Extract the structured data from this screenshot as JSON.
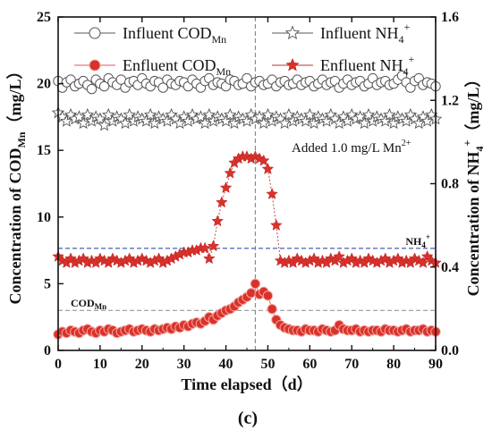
{
  "panel_label": "(c)",
  "chart_data": {
    "type": "scatter",
    "xlabel": "Time elapsed（d）",
    "ylabel_left": "Concentration of COD",
    "ylabel_left_sub": "Mn",
    "ylabel_left_unit": "（mg/L）",
    "ylabel_right": "Concentration of NH",
    "ylabel_right_sub": "4",
    "ylabel_right_sup": "+",
    "ylabel_right_unit": "（mg/L）",
    "xlim": [
      0,
      90
    ],
    "ylim_left": [
      0,
      25
    ],
    "ylim_right": [
      0,
      1.6
    ],
    "x_ticks": [
      "0",
      "10",
      "20",
      "30",
      "40",
      "50",
      "60",
      "70",
      "80",
      "90"
    ],
    "y_left_ticks": [
      "0",
      "5",
      "10",
      "15",
      "20",
      "25"
    ],
    "y_right_ticks": [
      "0.0",
      "0.4",
      "0.8",
      "1.2",
      "1.6"
    ],
    "legend": {
      "placement": "top",
      "items": [
        {
          "main": "Influent COD",
          "sub": "Mn",
          "sup": ""
        },
        {
          "main": "Influent NH",
          "sub": "4",
          "sup": "+"
        },
        {
          "main": "Enfluent COD",
          "sub": "Mn",
          "sup": ""
        },
        {
          "main": "Enfluent NH",
          "sub": "4",
          "sup": "+"
        }
      ]
    },
    "annotation": {
      "text": "Added 1.0 mg/L Mn",
      "sup": "2+",
      "x": 47
    },
    "ref_lines": [
      {
        "label": "NH",
        "sub": "4",
        "sup": "+",
        "axis": "right",
        "y": 0.49,
        "color": "#3a4fa8"
      },
      {
        "label": "COD",
        "sub": "Mn",
        "sup": "",
        "axis": "left",
        "y": 3.0,
        "color": "#8a8a8a"
      }
    ],
    "series": [
      {
        "name": "Influent COD",
        "axis": "left",
        "marker": "open-circle",
        "color": "#555555",
        "x": [
          0,
          1,
          2,
          3,
          4,
          5,
          6,
          7,
          8,
          9,
          10,
          11,
          12,
          13,
          14,
          15,
          16,
          17,
          18,
          19,
          20,
          21,
          22,
          23,
          24,
          25,
          26,
          27,
          28,
          29,
          30,
          31,
          32,
          33,
          34,
          35,
          36,
          37,
          38,
          39,
          40,
          41,
          42,
          43,
          44,
          45,
          46,
          47,
          48,
          49,
          50,
          51,
          52,
          53,
          54,
          55,
          56,
          57,
          58,
          59,
          60,
          61,
          62,
          63,
          64,
          65,
          66,
          67,
          68,
          69,
          70,
          71,
          72,
          73,
          74,
          75,
          76,
          77,
          78,
          79,
          80,
          81,
          82,
          83,
          84,
          85,
          86,
          87,
          88,
          89,
          90
        ],
        "y": [
          20.2,
          19.7,
          20.1,
          20.3,
          19.8,
          20.0,
          20.2,
          19.9,
          19.6,
          20.3,
          20.0,
          19.8,
          20.4,
          20.1,
          19.9,
          20.3,
          19.7,
          20.1,
          20.2,
          19.9,
          20.4,
          20.0,
          19.8,
          20.2,
          20.1,
          19.7,
          20.3,
          20.0,
          19.9,
          20.2,
          20.1,
          19.8,
          20.3,
          20.0,
          19.7,
          20.2,
          20.4,
          19.9,
          20.1,
          20.0,
          19.8,
          20.3,
          20.2,
          19.9,
          20.0,
          20.4,
          19.8,
          20.1,
          20.2,
          19.9,
          20.0,
          20.3,
          19.8,
          20.1,
          20.2,
          19.9,
          20.0,
          20.3,
          19.9,
          20.1,
          20.2,
          19.8,
          20.0,
          20.3,
          19.9,
          20.1,
          20.2,
          19.7,
          20.0,
          20.3,
          19.9,
          20.1,
          20.2,
          19.8,
          20.0,
          20.4,
          19.9,
          20.1,
          20.2,
          19.9,
          20.0,
          20.3,
          20.6,
          20.1,
          19.7,
          20.2,
          20.4,
          19.9,
          20.1,
          20.0,
          19.8
        ]
      },
      {
        "name": "Influent NH",
        "axis": "right",
        "marker": "open-star",
        "color": "#555555",
        "x": [
          0,
          1,
          2,
          3,
          4,
          5,
          6,
          7,
          8,
          9,
          10,
          11,
          12,
          13,
          14,
          15,
          16,
          17,
          18,
          19,
          20,
          21,
          22,
          23,
          24,
          25,
          26,
          27,
          28,
          29,
          30,
          31,
          32,
          33,
          34,
          35,
          36,
          37,
          38,
          39,
          40,
          41,
          42,
          43,
          44,
          45,
          46,
          47,
          48,
          49,
          50,
          51,
          52,
          53,
          54,
          55,
          56,
          57,
          58,
          59,
          60,
          61,
          62,
          63,
          64,
          65,
          66,
          67,
          68,
          69,
          70,
          71,
          72,
          73,
          74,
          75,
          76,
          77,
          78,
          79,
          80,
          81,
          82,
          83,
          84,
          85,
          86,
          87,
          88,
          89,
          90
        ],
        "y": [
          1.14,
          1.12,
          1.1,
          1.13,
          1.11,
          1.12,
          1.09,
          1.13,
          1.1,
          1.12,
          1.11,
          1.08,
          1.13,
          1.1,
          1.12,
          1.11,
          1.09,
          1.13,
          1.1,
          1.12,
          1.11,
          1.1,
          1.13,
          1.09,
          1.12,
          1.11,
          1.1,
          1.13,
          1.11,
          1.09,
          1.12,
          1.1,
          1.13,
          1.11,
          1.12,
          1.09,
          1.13,
          1.1,
          1.12,
          1.11,
          1.1,
          1.13,
          1.09,
          1.12,
          1.11,
          1.1,
          1.13,
          1.11,
          1.12,
          1.09,
          1.13,
          1.1,
          1.12,
          1.11,
          1.09,
          1.13,
          1.1,
          1.12,
          1.11,
          1.1,
          1.13,
          1.09,
          1.12,
          1.11,
          1.1,
          1.13,
          1.11,
          1.09,
          1.12,
          1.1,
          1.13,
          1.11,
          1.12,
          1.09,
          1.13,
          1.1,
          1.12,
          1.11,
          1.1,
          1.13,
          1.09,
          1.12,
          1.11,
          1.1,
          1.13,
          1.11,
          1.09,
          1.12,
          1.1,
          1.13,
          1.11
        ]
      },
      {
        "name": "Enfluent COD",
        "axis": "left",
        "marker": "filled-circle",
        "color": "#d9322b",
        "x": [
          0,
          1,
          2,
          3,
          4,
          5,
          6,
          7,
          8,
          9,
          10,
          11,
          12,
          13,
          14,
          15,
          16,
          17,
          18,
          19,
          20,
          21,
          22,
          23,
          24,
          25,
          26,
          27,
          28,
          29,
          30,
          31,
          32,
          33,
          34,
          35,
          36,
          37,
          38,
          39,
          40,
          41,
          42,
          43,
          44,
          45,
          46,
          47,
          48,
          49,
          50,
          51,
          52,
          53,
          54,
          55,
          56,
          57,
          58,
          59,
          60,
          61,
          62,
          63,
          64,
          65,
          66,
          67,
          68,
          69,
          70,
          71,
          72,
          73,
          74,
          75,
          76,
          77,
          78,
          79,
          80,
          81,
          82,
          83,
          84,
          85,
          86,
          87,
          88,
          89,
          90
        ],
        "y": [
          1.2,
          1.4,
          1.3,
          1.5,
          1.4,
          1.3,
          1.5,
          1.6,
          1.4,
          1.3,
          1.5,
          1.4,
          1.6,
          1.5,
          1.3,
          1.4,
          1.5,
          1.6,
          1.4,
          1.5,
          1.6,
          1.5,
          1.4,
          1.6,
          1.5,
          1.6,
          1.7,
          1.6,
          1.8,
          1.7,
          1.9,
          1.8,
          2.0,
          2.1,
          2.0,
          2.2,
          2.5,
          2.3,
          2.6,
          2.8,
          3.0,
          3.1,
          3.3,
          3.6,
          3.8,
          4.0,
          4.3,
          5.0,
          4.2,
          4.4,
          4.1,
          3.1,
          2.3,
          1.9,
          1.7,
          1.6,
          1.5,
          1.5,
          1.4,
          1.6,
          1.5,
          1.5,
          1.4,
          1.6,
          1.5,
          1.4,
          1.5,
          1.9,
          1.6,
          1.5,
          1.5,
          1.6,
          1.4,
          1.5,
          1.4,
          1.5,
          1.5,
          1.4,
          1.6,
          1.5,
          1.5,
          1.4,
          1.5,
          1.6,
          1.4,
          1.5,
          1.5,
          1.6,
          1.4,
          1.5,
          1.4
        ]
      },
      {
        "name": "Enfluent NH",
        "axis": "right",
        "marker": "filled-star",
        "color": "#d9322b",
        "x": [
          0,
          1,
          2,
          3,
          4,
          5,
          6,
          7,
          8,
          9,
          10,
          11,
          12,
          13,
          14,
          15,
          16,
          17,
          18,
          19,
          20,
          21,
          22,
          23,
          24,
          25,
          26,
          27,
          28,
          29,
          30,
          31,
          32,
          33,
          34,
          35,
          36,
          37,
          38,
          39,
          40,
          41,
          42,
          43,
          44,
          45,
          46,
          47,
          48,
          49,
          50,
          51,
          52,
          53,
          54,
          55,
          56,
          57,
          58,
          59,
          60,
          61,
          62,
          63,
          64,
          65,
          66,
          67,
          68,
          69,
          70,
          71,
          72,
          73,
          74,
          75,
          76,
          77,
          78,
          79,
          80,
          81,
          82,
          83,
          84,
          85,
          86,
          87,
          88,
          89,
          90
        ],
        "y": [
          0.45,
          0.43,
          0.42,
          0.44,
          0.42,
          0.43,
          0.44,
          0.42,
          0.43,
          0.42,
          0.44,
          0.43,
          0.42,
          0.44,
          0.43,
          0.42,
          0.43,
          0.44,
          0.42,
          0.43,
          0.44,
          0.43,
          0.42,
          0.43,
          0.44,
          0.42,
          0.43,
          0.44,
          0.45,
          0.46,
          0.47,
          0.47,
          0.48,
          0.48,
          0.49,
          0.49,
          0.44,
          0.5,
          0.62,
          0.71,
          0.78,
          0.85,
          0.9,
          0.92,
          0.93,
          0.93,
          0.92,
          0.93,
          0.92,
          0.91,
          0.87,
          0.75,
          0.6,
          0.43,
          0.42,
          0.43,
          0.42,
          0.44,
          0.43,
          0.42,
          0.43,
          0.44,
          0.42,
          0.43,
          0.42,
          0.44,
          0.43,
          0.45,
          0.42,
          0.43,
          0.44,
          0.42,
          0.43,
          0.42,
          0.44,
          0.43,
          0.42,
          0.43,
          0.44,
          0.42,
          0.43,
          0.44,
          0.42,
          0.43,
          0.42,
          0.44,
          0.43,
          0.42,
          0.45,
          0.43,
          0.42
        ]
      }
    ]
  }
}
